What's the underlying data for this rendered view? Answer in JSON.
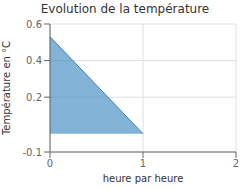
{
  "chart_data": {
    "type": "area",
    "title": "Evolution de la température",
    "xlabel": "heure par heure",
    "ylabel": "Température en °C",
    "x": [
      0,
      1
    ],
    "values": [
      0.53,
      0.0
    ],
    "xlim": [
      0,
      2
    ],
    "xticks": [
      0,
      1,
      2
    ],
    "ylim": [
      -0.1,
      0.6
    ],
    "yticks": [
      -0.1,
      0.2,
      0.4,
      0.6
    ],
    "grid": true
  }
}
